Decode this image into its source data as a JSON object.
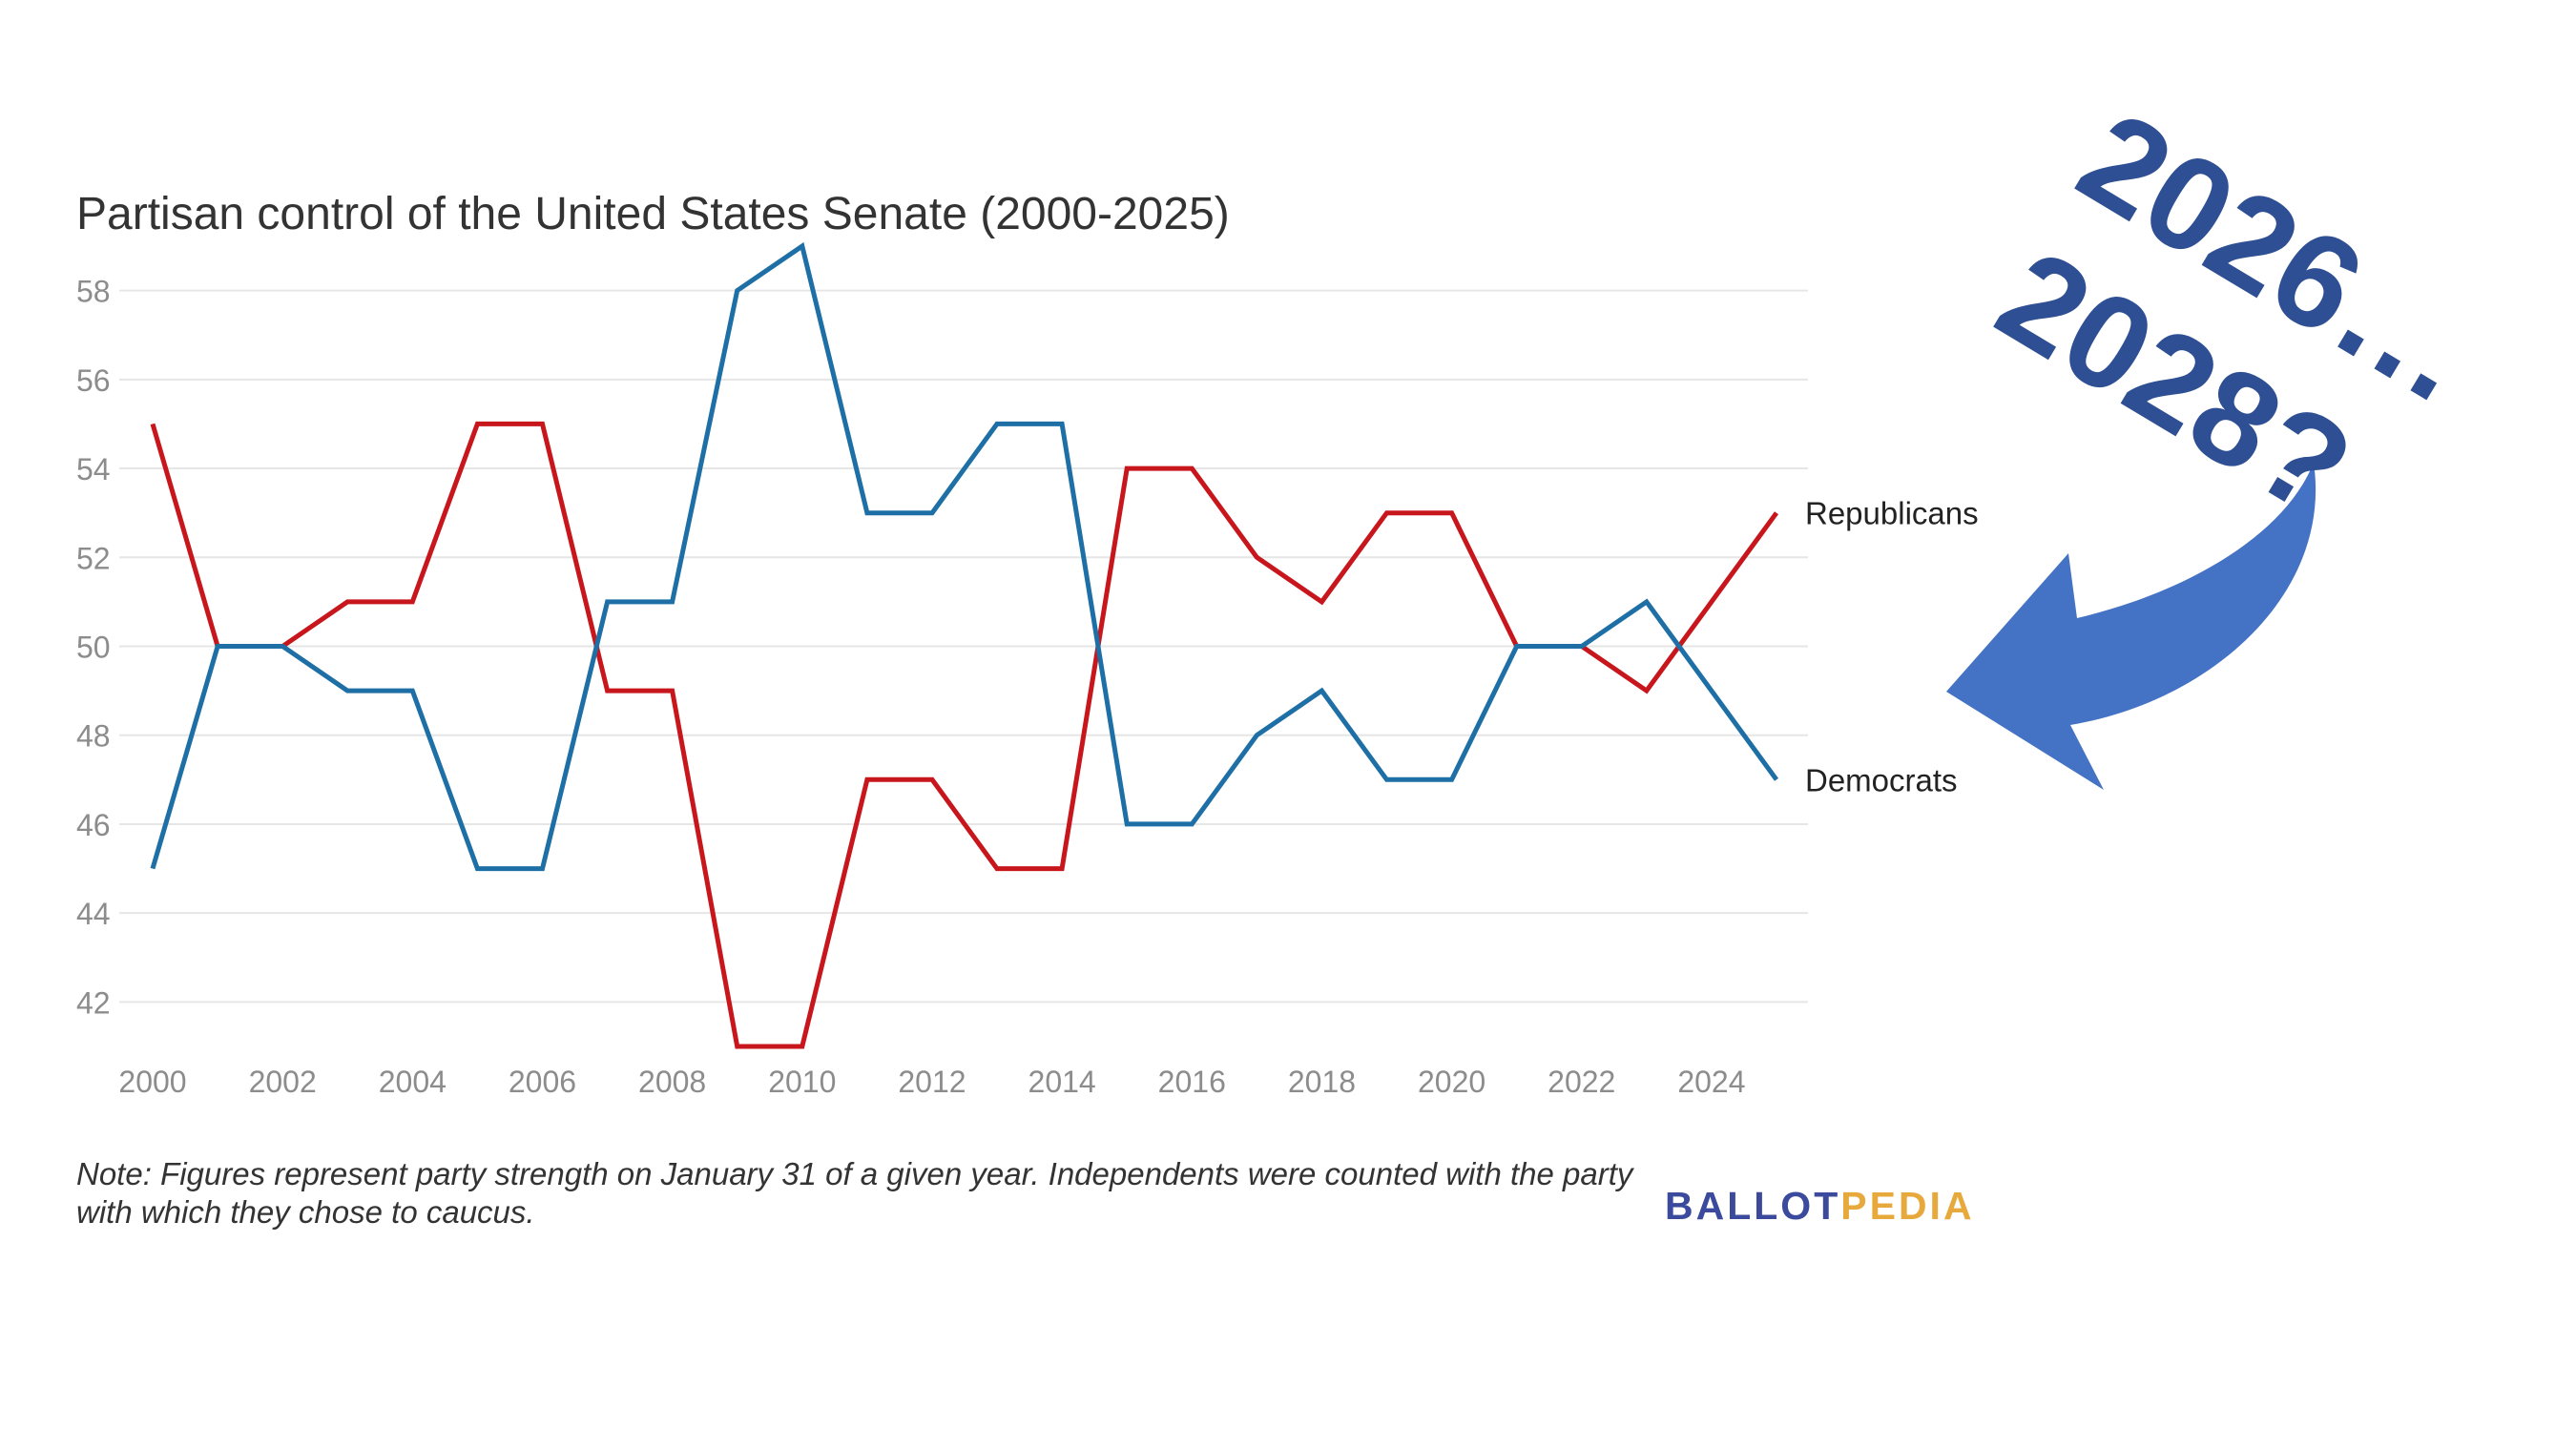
{
  "chart_data": {
    "type": "line",
    "title": "Partisan control of the United States Senate (2000-2025)",
    "xlabel": "",
    "ylabel": "",
    "x": [
      2000,
      2001,
      2002,
      2003,
      2004,
      2005,
      2006,
      2007,
      2008,
      2009,
      2010,
      2011,
      2012,
      2013,
      2014,
      2015,
      2016,
      2017,
      2018,
      2019,
      2020,
      2021,
      2022,
      2023,
      2024,
      2025
    ],
    "xlim": [
      2000,
      2025
    ],
    "ylim": [
      41,
      59
    ],
    "x_ticks": [
      "2000",
      "2002",
      "2004",
      "2006",
      "2008",
      "2010",
      "2012",
      "2014",
      "2016",
      "2018",
      "2020",
      "2022",
      "2024"
    ],
    "y_ticks": [
      "42",
      "44",
      "46",
      "48",
      "50",
      "52",
      "54",
      "56",
      "58"
    ],
    "grid": true,
    "legend": "inline labels at line ends (right)",
    "series": [
      {
        "name": "Republicans",
        "color": "#c8161d",
        "values": [
          55,
          50,
          50,
          51,
          51,
          55,
          55,
          49,
          49,
          41,
          41,
          47,
          47,
          45,
          45,
          54,
          54,
          52,
          51,
          53,
          53,
          50,
          50,
          49,
          51,
          53
        ]
      },
      {
        "name": "Democrats",
        "color": "#1d6fa5",
        "values": [
          45,
          50,
          50,
          49,
          49,
          45,
          45,
          51,
          51,
          58,
          59,
          53,
          53,
          55,
          55,
          46,
          46,
          48,
          49,
          47,
          47,
          50,
          50,
          51,
          49,
          47
        ]
      }
    ],
    "note_line1": "Note: Figures represent party strength on January 31 of a given year. Independents were counted with the party",
    "note_line2": "with which they chose to caucus."
  },
  "logo": {
    "part1": "BALLOT",
    "part2": "PEDIA",
    "color1": "#3b4a9c",
    "color2": "#e8a93c"
  },
  "callout": {
    "line1": "2026…",
    "line2": "2028?",
    "text_color": "#2e4f93",
    "arrow_color": "#4472c4"
  },
  "colors": {
    "grid": "#e6e6e6",
    "tick_label": "#8c8c8c",
    "title": "#333333"
  }
}
